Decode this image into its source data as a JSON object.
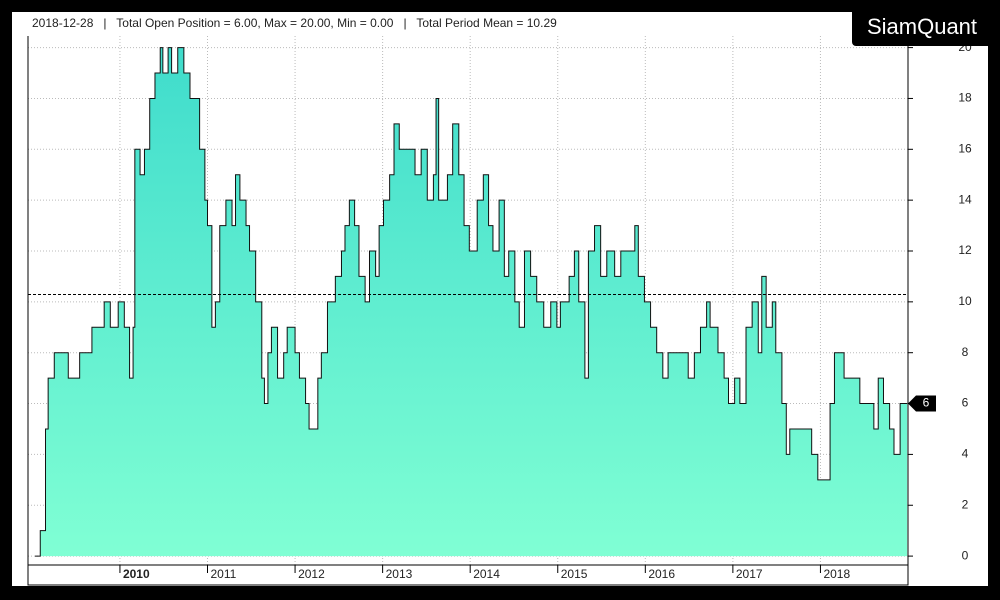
{
  "brand": "SiamQuant",
  "chart_data": {
    "type": "step-area",
    "header": "2018-12-28   |   Total Open Position = 6.00, Max = 20.00, Min = 0.00   |   Total Period Mean = 10.29",
    "mean": 10.29,
    "xlim": [
      2008.95,
      2019.0
    ],
    "xticks": [
      2010,
      2011,
      2012,
      2013,
      2014,
      2015,
      2016,
      2017,
      2018
    ],
    "ylim": [
      -0.35,
      21.4
    ],
    "yticks": [
      0,
      2,
      4,
      6,
      8,
      10,
      12,
      14,
      16,
      18,
      20
    ],
    "grid": true,
    "series": [
      {
        "name": "Total Open Position",
        "color": "#3fdccc",
        "x": [
          2009.03,
          2009.09,
          2009.15,
          2009.18,
          2009.25,
          2009.41,
          2009.54,
          2009.68,
          2009.82,
          2009.89,
          2009.98,
          2010.05,
          2010.11,
          2010.15,
          2010.17,
          2010.23,
          2010.28,
          2010.34,
          2010.4,
          2010.46,
          2010.49,
          2010.55,
          2010.59,
          2010.66,
          2010.73,
          2010.8,
          2010.91,
          2010.97,
          2011.0,
          2011.05,
          2011.09,
          2011.14,
          2011.21,
          2011.28,
          2011.32,
          2011.37,
          2011.44,
          2011.48,
          2011.55,
          2011.62,
          2011.65,
          2011.69,
          2011.73,
          2011.8,
          2011.87,
          2011.91,
          2012.0,
          2012.05,
          2012.12,
          2012.16,
          2012.26,
          2012.3,
          2012.37,
          2012.46,
          2012.53,
          2012.57,
          2012.62,
          2012.68,
          2012.73,
          2012.8,
          2012.85,
          2012.92,
          2012.96,
          2013.01,
          2013.08,
          2013.13,
          2013.19,
          2013.37,
          2013.44,
          2013.51,
          2013.58,
          2013.61,
          2013.64,
          2013.74,
          2013.8,
          2013.87,
          2013.93,
          2013.99,
          2014.08,
          2014.15,
          2014.21,
          2014.26,
          2014.33,
          2014.39,
          2014.44,
          2014.51,
          2014.56,
          2014.62,
          2014.69,
          2014.76,
          2014.84,
          2014.92,
          2014.99,
          2015.03,
          2015.13,
          2015.19,
          2015.24,
          2015.31,
          2015.35,
          2015.42,
          2015.49,
          2015.56,
          2015.65,
          2015.72,
          2015.88,
          2015.92,
          2015.99,
          2016.06,
          2016.13,
          2016.2,
          2016.26,
          2016.49,
          2016.56,
          2016.63,
          2016.7,
          2016.74,
          2016.83,
          2016.9,
          2016.95,
          2017.02,
          2017.08,
          2017.15,
          2017.22,
          2017.29,
          2017.33,
          2017.38,
          2017.45,
          2017.49,
          2017.56,
          2017.61,
          2017.65,
          2017.9,
          2017.97,
          2018.11,
          2018.16,
          2018.27,
          2018.45,
          2018.61,
          2018.66,
          2018.72,
          2018.79,
          2018.84,
          2018.91,
          2018.99
        ],
        "values": [
          0,
          1,
          5,
          7,
          8,
          7,
          8,
          9,
          10,
          9,
          10,
          9,
          7,
          9,
          16,
          15,
          16,
          18,
          19,
          20,
          19,
          20,
          19,
          20,
          19,
          18,
          16,
          14,
          13,
          9,
          10,
          13,
          14,
          13,
          15,
          14,
          13,
          12,
          10,
          7,
          6,
          8,
          9,
          7,
          8,
          9,
          8,
          7,
          6,
          5,
          7,
          8,
          10,
          11,
          12,
          13,
          14,
          13,
          11,
          10,
          12,
          11,
          13,
          14,
          15,
          17,
          16,
          15,
          16,
          14,
          15,
          18,
          14,
          15,
          17,
          15,
          13,
          12,
          14,
          15,
          13,
          12,
          14,
          11,
          12,
          10,
          9,
          12,
          11,
          10,
          9,
          10,
          9,
          10,
          11,
          12,
          10,
          7,
          12,
          13,
          11,
          12,
          11,
          12,
          13,
          11,
          10,
          9,
          8,
          7,
          8,
          7,
          8,
          9,
          10,
          9,
          8,
          7,
          6,
          7,
          6,
          9,
          10,
          8,
          11,
          9,
          10,
          8,
          6,
          4,
          5,
          4,
          3,
          6,
          8,
          7,
          6,
          5,
          7,
          6,
          5,
          4,
          6,
          6
        ]
      }
    ]
  }
}
